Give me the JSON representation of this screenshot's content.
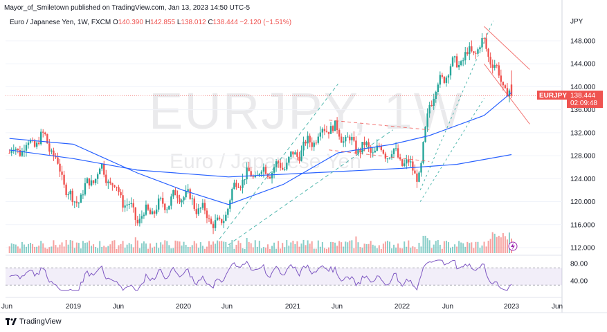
{
  "header": {
    "published": "Mayor_of_Smiletown published on TradingView.com, Jan 13, 2023 14:50 UTC-5"
  },
  "legend": {
    "symbol": "Euro / Japanese Yen, 1W, FXCM",
    "open_label": "O",
    "open": "140.390",
    "high_label": "H",
    "high": "142.855",
    "low_label": "L",
    "low": "138.012",
    "close_label": "C",
    "close": "138.444",
    "change": "−2.120 (−1.51%)"
  },
  "watermark": {
    "ticker": "EURJPY, 1W",
    "name": "Euro / Japanese Yen"
  },
  "price_tag": {
    "symbol": "EURJPY",
    "price": "138.444",
    "countdown": "02:09:48"
  },
  "colors": {
    "up": "#26a69a",
    "down": "#ef5350",
    "ma": "#2962ff",
    "rsi": "#7e57c2",
    "channel_green": "#26a69a",
    "channel_red": "#ef5350"
  },
  "brand": {
    "name": "TradingView"
  },
  "chart_data": [
    {
      "type": "candlestick",
      "currency_label": "JPY",
      "ylim": [
        110.0,
        152.0
      ],
      "y_ticks": [
        "148.000",
        "144.000",
        "140.000",
        "136.000",
        "132.000",
        "128.000",
        "124.000",
        "120.000",
        "116.000",
        "112.000"
      ],
      "x_ticks": [
        "Jun",
        "2019",
        "Jun",
        "2020",
        "Jun",
        "2021",
        "Jun",
        "2022",
        "Jun",
        "2023",
        "Jun"
      ],
      "key_closes": [
        {
          "date": "2018-06",
          "price": 128.5
        },
        {
          "date": "2018-10",
          "price": 131.2
        },
        {
          "date": "2019-01",
          "price": 119.5
        },
        {
          "date": "2019-04",
          "price": 125.8
        },
        {
          "date": "2019-08",
          "price": 117.0
        },
        {
          "date": "2020-01",
          "price": 121.5
        },
        {
          "date": "2020-05",
          "price": 115.5
        },
        {
          "date": "2020-07",
          "price": 123.8
        },
        {
          "date": "2020-12",
          "price": 126.3
        },
        {
          "date": "2021-05",
          "price": 133.3
        },
        {
          "date": "2021-08",
          "price": 129.5
        },
        {
          "date": "2021-12",
          "price": 128.5
        },
        {
          "date": "2022-03",
          "price": 124.5
        },
        {
          "date": "2022-04",
          "price": 137.5
        },
        {
          "date": "2022-06",
          "price": 143.0
        },
        {
          "date": "2022-10",
          "price": 147.5
        },
        {
          "date": "2022-12",
          "price": 140.5
        },
        {
          "date": "2023-01",
          "price": 138.444
        }
      ],
      "moving_averages": [
        {
          "name": "MA fast",
          "points": [
            {
              "date": "2018-06",
              "price": 131.0
            },
            {
              "date": "2019-01",
              "price": 130.0
            },
            {
              "date": "2019-08",
              "price": 125.0
            },
            {
              "date": "2020-01",
              "price": 122.0
            },
            {
              "date": "2020-06",
              "price": 119.5
            },
            {
              "date": "2020-12",
              "price": 123.0
            },
            {
              "date": "2021-06",
              "price": 128.5
            },
            {
              "date": "2021-12",
              "price": 130.0
            },
            {
              "date": "2022-04",
              "price": 131.5
            },
            {
              "date": "2022-10",
              "price": 135.0
            },
            {
              "date": "2023-01",
              "price": 139.0
            }
          ]
        },
        {
          "name": "MA slow",
          "points": [
            {
              "date": "2018-06",
              "price": 129.0
            },
            {
              "date": "2019-01",
              "price": 127.5
            },
            {
              "date": "2019-08",
              "price": 125.5
            },
            {
              "date": "2020-06",
              "price": 124.3
            },
            {
              "date": "2021-03",
              "price": 125.0
            },
            {
              "date": "2022-01",
              "price": 125.8
            },
            {
              "date": "2022-07",
              "price": 126.5
            },
            {
              "date": "2023-01",
              "price": 128.2
            }
          ]
        }
      ]
    },
    {
      "type": "line",
      "name": "RSI",
      "ylim": [
        0,
        100
      ],
      "y_ticks": [
        "80.00",
        "40.00"
      ],
      "band": [
        30,
        70
      ],
      "last": 32
    }
  ]
}
